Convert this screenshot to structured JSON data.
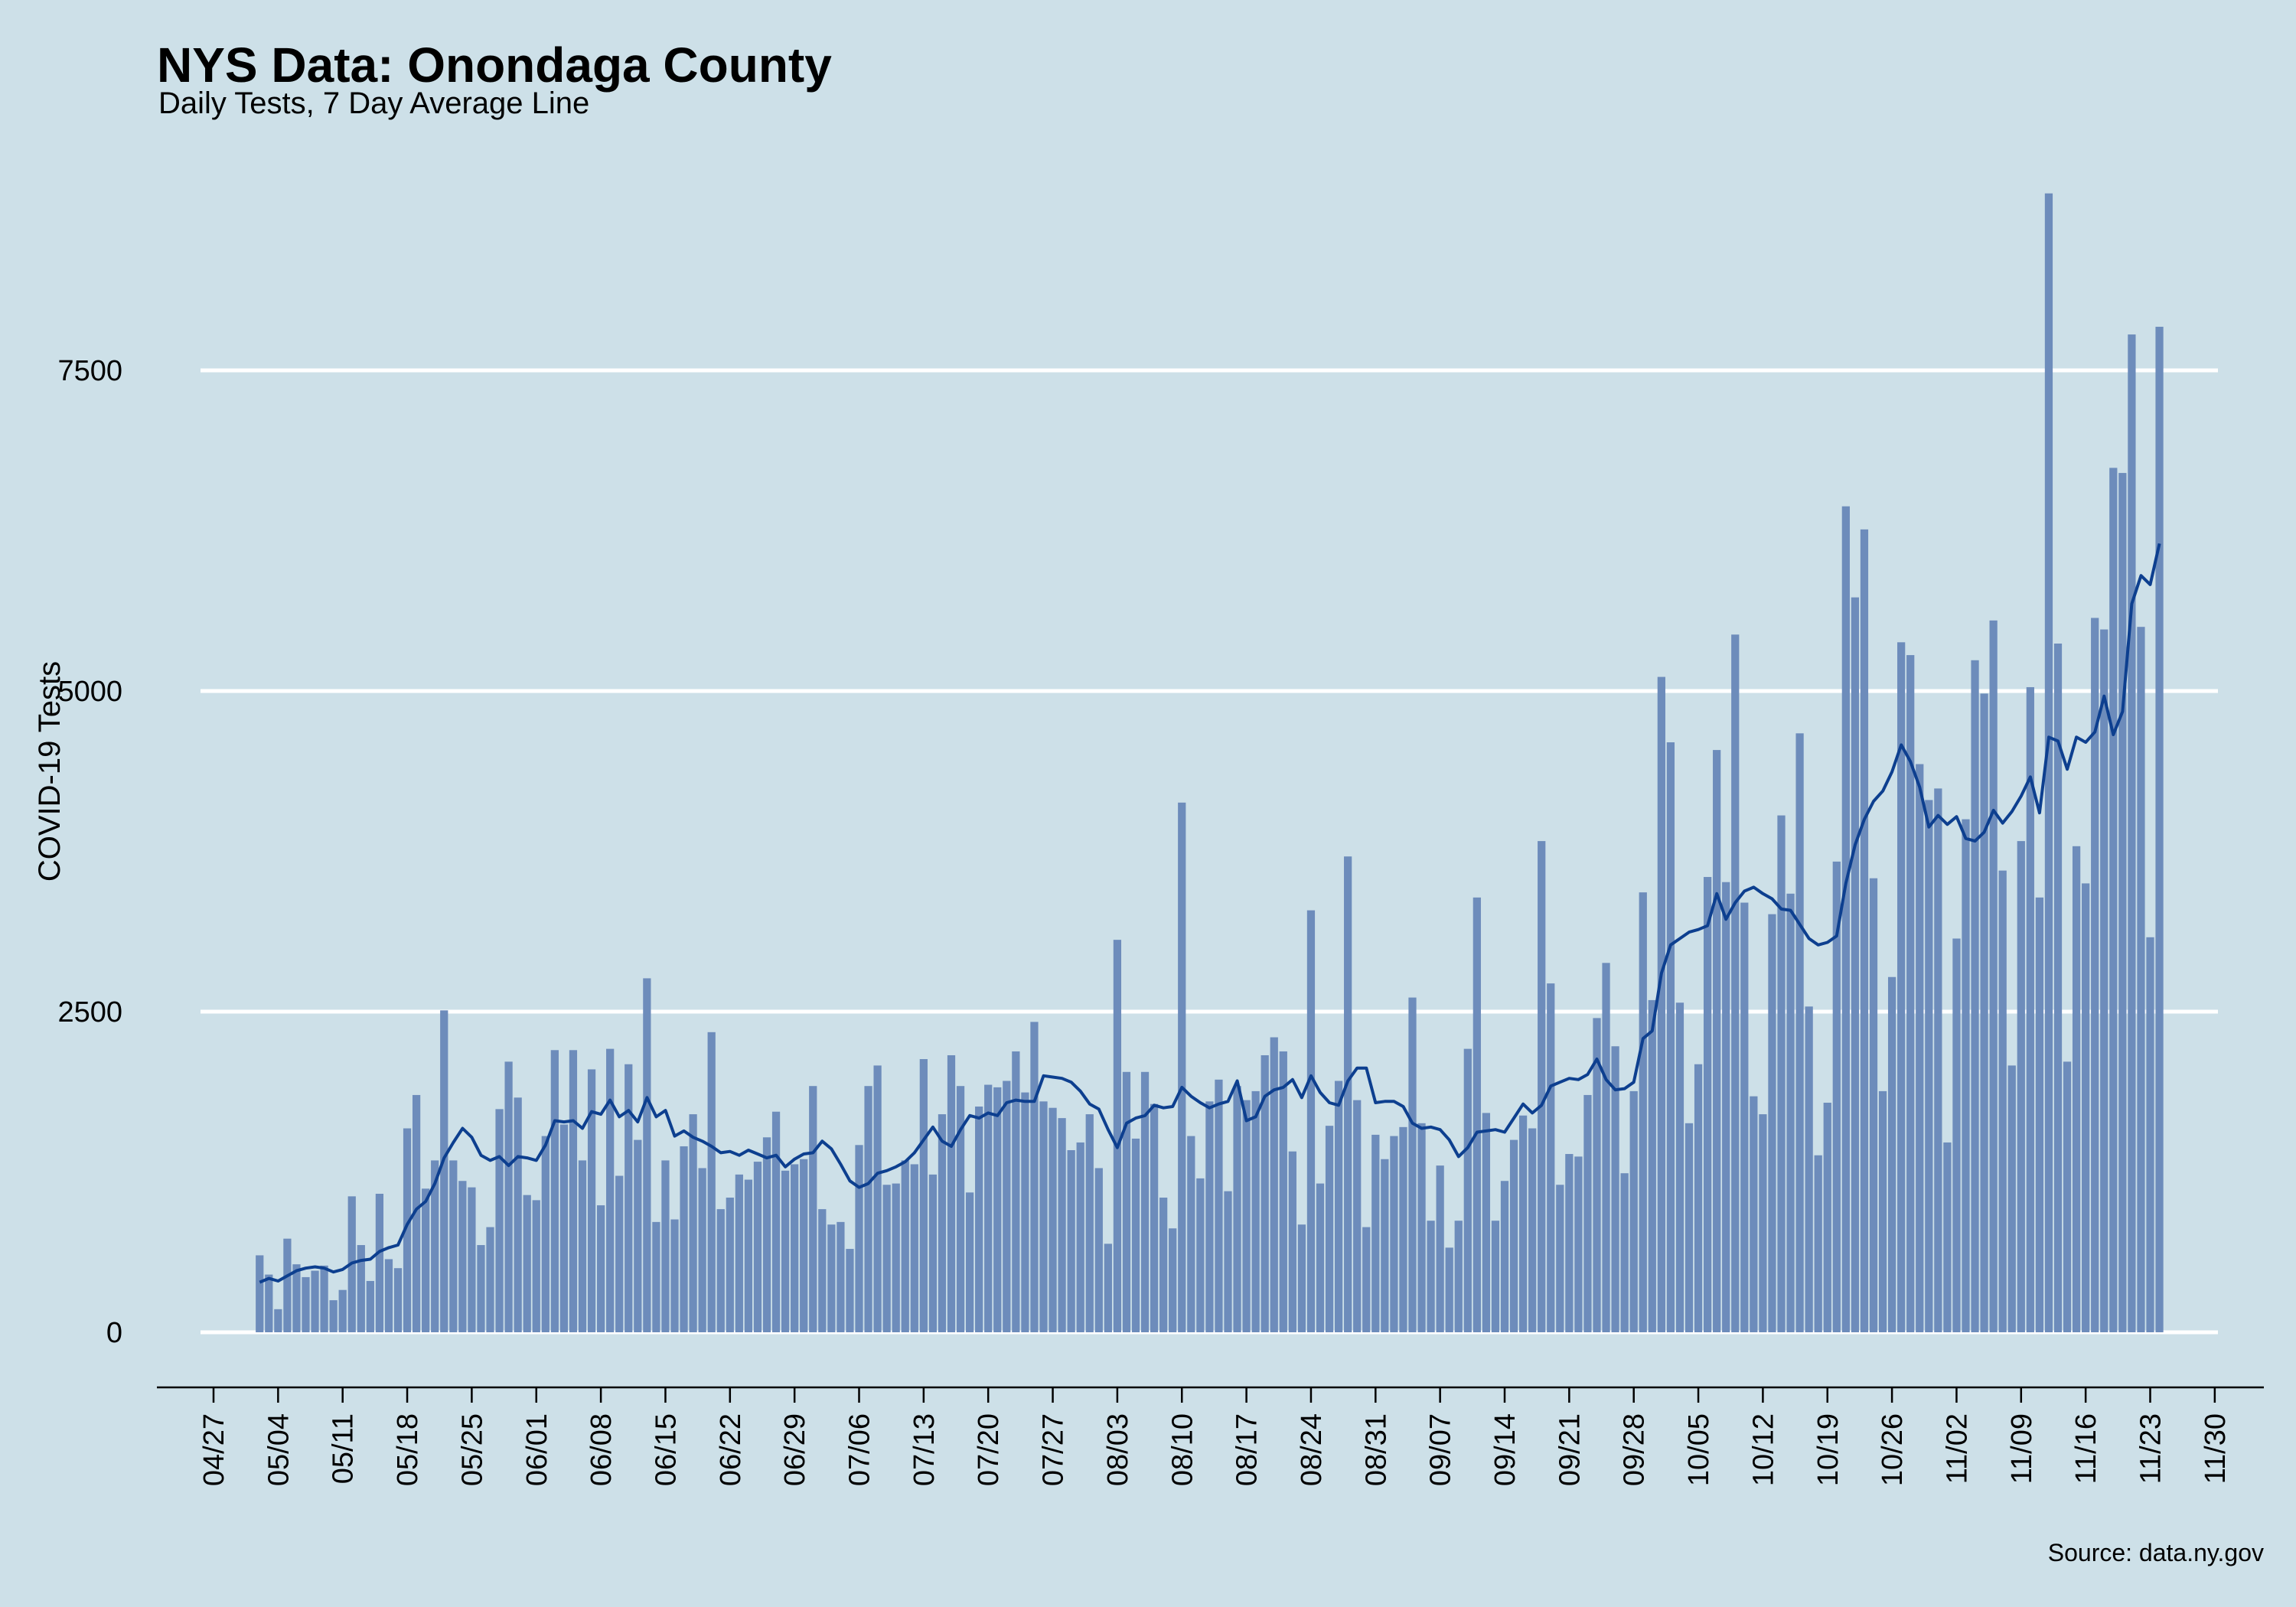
{
  "chart_data": {
    "type": "bar",
    "title": "NYS Data: Onondaga County",
    "subtitle": "Daily Tests, 7 Day Average Line",
    "ylabel": "COVID-19 Tests",
    "caption": "Source: data.ny.gov",
    "ylim": [
      0,
      9000
    ],
    "yticks": [
      0,
      2500,
      5000,
      7500
    ],
    "x_range": [
      "04/27",
      "11/30"
    ],
    "x_start": "05/02",
    "xtick_labels": [
      "04/27",
      "05/04",
      "05/11",
      "05/18",
      "05/25",
      "06/01",
      "06/08",
      "06/15",
      "06/22",
      "06/29",
      "07/06",
      "07/13",
      "07/20",
      "07/27",
      "08/03",
      "08/10",
      "08/17",
      "08/24",
      "08/31",
      "09/07",
      "09/14",
      "09/21",
      "09/28",
      "10/05",
      "10/12",
      "10/19",
      "10/26",
      "11/02",
      "11/09",
      "11/16",
      "11/23",
      "11/30"
    ],
    "grid": true,
    "colors": {
      "background": "#cde0e8",
      "bars": "#6d8cbb",
      "line": "#0d3f8f",
      "grid": "#ffffff"
    },
    "series": [
      {
        "type": "bar",
        "values": [
          600,
          450,
          180,
          730,
          530,
          430,
          480,
          520,
          250,
          330,
          1060,
          680,
          400,
          1080,
          570,
          500,
          1590,
          1850,
          1120,
          1340,
          2510,
          1340,
          1180,
          1130,
          680,
          820,
          1740,
          2110,
          1830,
          1070,
          1030,
          1530,
          2200,
          1620,
          2200,
          1340,
          2050,
          990,
          2210,
          1220,
          2090,
          1500,
          2760,
          860,
          1340,
          880,
          1450,
          1700,
          1280,
          2340,
          960,
          1050,
          1230,
          1190,
          1330,
          1520,
          1720,
          1260,
          1310,
          1350,
          1920,
          960,
          840,
          860,
          650,
          1460,
          1920,
          2080,
          1150,
          1160,
          1340,
          1310,
          2130,
          1230,
          1700,
          2160,
          1920,
          1090,
          1760,
          1930,
          1910,
          1960,
          2190,
          1870,
          2420,
          1800,
          1750,
          1670,
          1420,
          1480,
          1700,
          1280,
          690,
          3060,
          2030,
          1510,
          2030,
          1780,
          1050,
          810,
          4130,
          1530,
          1200,
          1800,
          1970,
          1100,
          1920,
          1810,
          1880,
          2160,
          2300,
          2190,
          1410,
          840,
          3290,
          1160,
          1610,
          1960,
          3710,
          1810,
          820,
          1540,
          1350,
          1530,
          1600,
          2610,
          1630,
          870,
          1300,
          660,
          870,
          2210,
          3390,
          1710,
          870,
          1180,
          1500,
          1690,
          1590,
          3830,
          2720,
          1150,
          1390,
          1370,
          1850,
          2450,
          2880,
          2230,
          1240,
          1880,
          3430,
          2590,
          5110,
          4600,
          2570,
          1630,
          2090,
          3550,
          4540,
          3510,
          5440,
          3350,
          1840,
          1700,
          3260,
          4030,
          3420,
          4670,
          2540,
          1380,
          1790,
          3670,
          6440,
          5730,
          6260,
          3540,
          1880,
          2770,
          5380,
          5280,
          4430,
          4150,
          4240,
          1480,
          3070,
          4000,
          5240,
          4980,
          5550,
          3600,
          2080,
          3830,
          5030,
          3390,
          8880,
          5370,
          2110,
          3790,
          3500,
          5570,
          5480,
          6740,
          6700,
          7780,
          5500,
          3080,
          7840
        ]
      },
      {
        "type": "line",
        "values": [
          390,
          420,
          400,
          440,
          480,
          500,
          510,
          500,
          470,
          490,
          540,
          560,
          570,
          630,
          660,
          680,
          840,
          960,
          1020,
          1160,
          1360,
          1480,
          1590,
          1520,
          1380,
          1340,
          1370,
          1300,
          1370,
          1360,
          1340,
          1460,
          1650,
          1640,
          1650,
          1590,
          1720,
          1700,
          1810,
          1680,
          1730,
          1640,
          1830,
          1680,
          1730,
          1530,
          1570,
          1520,
          1490,
          1450,
          1400,
          1410,
          1380,
          1420,
          1390,
          1360,
          1380,
          1290,
          1350,
          1390,
          1400,
          1490,
          1430,
          1310,
          1180,
          1130,
          1160,
          1240,
          1260,
          1290,
          1330,
          1400,
          1500,
          1600,
          1490,
          1450,
          1580,
          1690,
          1670,
          1710,
          1690,
          1790,
          1810,
          1800,
          1800,
          2000,
          1990,
          1980,
          1950,
          1880,
          1780,
          1740,
          1580,
          1440,
          1630,
          1670,
          1690,
          1770,
          1750,
          1760,
          1910,
          1840,
          1790,
          1750,
          1780,
          1800,
          1960,
          1650,
          1680,
          1840,
          1890,
          1910,
          1970,
          1830,
          2000,
          1870,
          1790,
          1770,
          1960,
          2060,
          2060,
          1790,
          1800,
          1800,
          1760,
          1630,
          1590,
          1600,
          1580,
          1500,
          1370,
          1440,
          1560,
          1570,
          1580,
          1560,
          1670,
          1780,
          1710,
          1770,
          1920,
          1950,
          1980,
          1970,
          2010,
          2130,
          1970,
          1890,
          1900,
          1950,
          2290,
          2350,
          2800,
          3020,
          3070,
          3120,
          3140,
          3170,
          3420,
          3220,
          3350,
          3440,
          3470,
          3420,
          3380,
          3300,
          3290,
          3180,
          3070,
          3020,
          3040,
          3090,
          3500,
          3800,
          4000,
          4140,
          4220,
          4370,
          4580,
          4450,
          4250,
          3940,
          4030,
          3960,
          4020,
          3850,
          3830,
          3900,
          4070,
          3970,
          4060,
          4180,
          4330,
          4050,
          4640,
          4610,
          4390,
          4640,
          4600,
          4680,
          4960,
          4660,
          4840,
          5680,
          5900,
          5830,
          6150
        ]
      }
    ]
  }
}
